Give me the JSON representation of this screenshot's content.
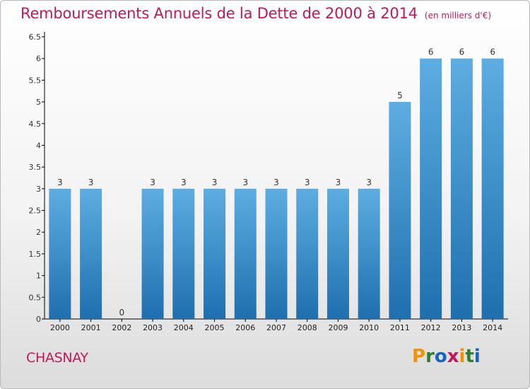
{
  "header": {
    "title": "Remboursements Annuels de la Dette de 2000 à 2014",
    "subtitle": "(en milliers d'€)"
  },
  "footer": {
    "town": "CHASNAY",
    "brand": [
      "P",
      "r",
      "o",
      "x",
      "i",
      "t",
      "i"
    ],
    "brand_colors": [
      "#f39200",
      "#2e7d32",
      "#1565c0",
      "#c2185b",
      "#f39200",
      "#2e7d32",
      "#1565c0"
    ]
  },
  "colors": {
    "bar_top": "#5dade2",
    "bar_bottom": "#1f6fae",
    "title": "#c2185b",
    "axis": "#000000"
  },
  "chart_data": {
    "type": "bar",
    "title": "Remboursements Annuels de la Dette de 2000 à 2014",
    "subtitle": "(en milliers d'€)",
    "categories": [
      "2000",
      "2001",
      "2002",
      "2003",
      "2004",
      "2005",
      "2006",
      "2007",
      "2008",
      "2009",
      "2010",
      "2011",
      "2012",
      "2013",
      "2014"
    ],
    "values": [
      3,
      3,
      0,
      3,
      3,
      3,
      3,
      3,
      3,
      3,
      3,
      5,
      6,
      6,
      6
    ],
    "value_labels": [
      "3",
      "3",
      "0",
      "3",
      "3",
      "3",
      "3",
      "3",
      "3",
      "3",
      "3",
      "5",
      "6",
      "6",
      "6"
    ],
    "y_ticks": [
      "0",
      "0.5",
      "1",
      "1.5",
      "2",
      "2.5",
      "3",
      "3.5",
      "4",
      "4.5",
      "5",
      "5.5",
      "6",
      "6.5"
    ],
    "ylim": [
      0,
      6.5
    ],
    "xlabel": "",
    "ylabel": "",
    "grid": false
  }
}
